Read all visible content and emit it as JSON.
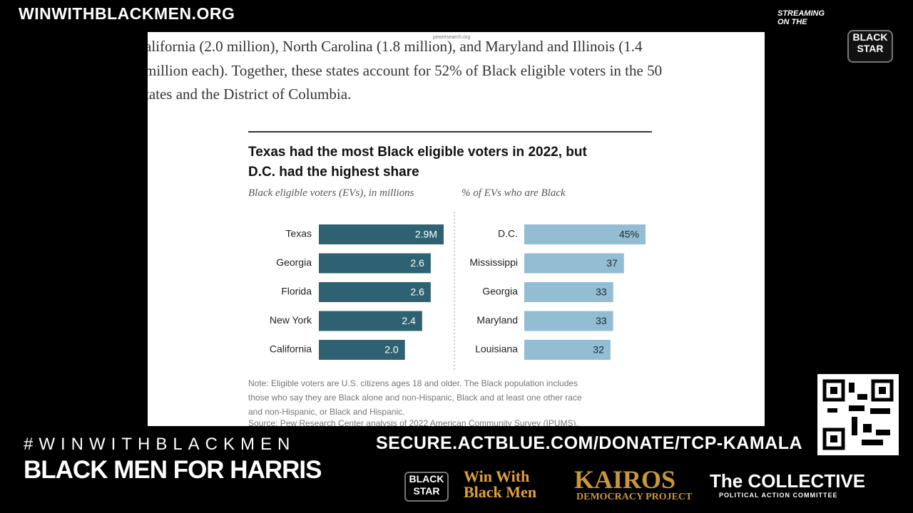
{
  "header": {
    "site": "WINWITHBLACKMEN.ORG",
    "streaming": "STREAMING ON THE",
    "logo": "BLACK STAR"
  },
  "browser": {
    "url": "pewresearch.org"
  },
  "article": {
    "lines": [
      "alifornia (2.0 million), North Carolina (1.8 million), and Maryland and Illinois (1.4",
      "million each). Together, these states account for 52% of Black eligible voters in the 50",
      "tates and the District of Columbia."
    ]
  },
  "chart": {
    "title": [
      "Texas had the most Black eligible voters in 2022, but",
      "D.C. had the highest share"
    ],
    "panels": [
      {
        "subtitle": "Black eligible voters (EVs), in millions",
        "categories": [
          "Texas",
          "Georgia",
          "Florida",
          "New York",
          "California"
        ],
        "values": [
          2.9,
          2.6,
          2.6,
          2.4,
          2.0
        ],
        "value_labels": [
          "2.9M",
          "2.6",
          "2.6",
          "2.4",
          "2.0"
        ],
        "color": "#2e6272"
      },
      {
        "subtitle": "% of EVs who are Black",
        "categories": [
          "D.C.",
          "Mississippi",
          "Georgia",
          "Maryland",
          "Louisiana"
        ],
        "values": [
          45,
          37,
          33,
          33,
          32
        ],
        "value_labels": [
          "45%",
          "37",
          "33",
          "33",
          "32"
        ],
        "color": "#93bdd3"
      }
    ],
    "note": [
      "Note: Eligible voters are U.S. citizens ages 18 and older. The Black population includes",
      "those who say they are Black alone and non-Hispanic, Black and at least one other race",
      "and non-Hispanic, or Black and Hispanic.",
      "Source: Pew Research Center analysis of 2022 American Community Survey (IPUMS)."
    ]
  },
  "footer": {
    "hashtag": "#WINWITHBLACKMEN",
    "slogan": "BLACK MEN FOR HARRIS",
    "donate": "SECURE.ACTBLUE.COM/DONATE/TCP-KAMALA",
    "logos": {
      "black_star": "BLACK STAR",
      "win_with": "Win With Black Men",
      "kairos": "KAIROS",
      "kairos_sub": "DEMOCRACY PROJECT",
      "collective": "The COLLECTIVE",
      "collective_sub": "POLITICAL ACTION COMMITTEE"
    }
  }
}
